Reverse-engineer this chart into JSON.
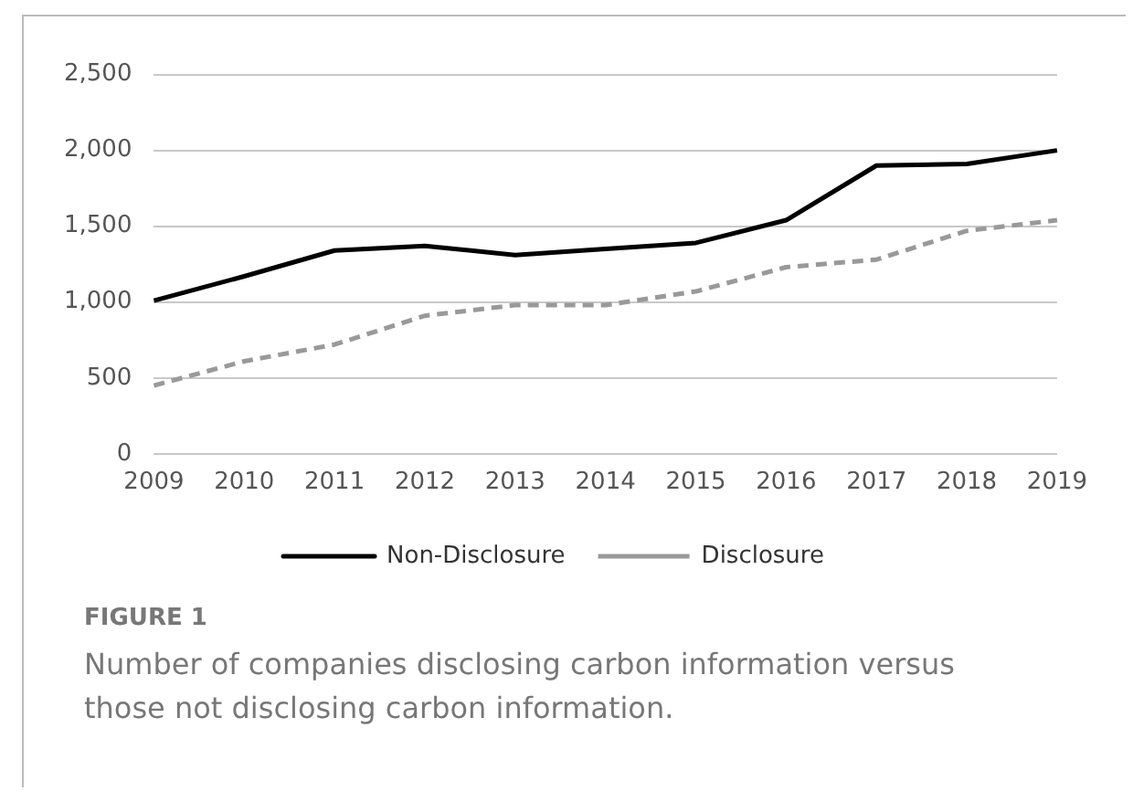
{
  "chart_data": {
    "type": "line",
    "categories": [
      "2009",
      "2010",
      "2011",
      "2012",
      "2013",
      "2014",
      "2015",
      "2016",
      "2017",
      "2018",
      "2019"
    ],
    "series": [
      {
        "name": "Non-Disclosure",
        "color": "#000000",
        "line_style": "solid",
        "values": [
          1010,
          1170,
          1340,
          1370,
          1310,
          1350,
          1390,
          1540,
          1900,
          1910,
          2000
        ]
      },
      {
        "name": "Disclosure",
        "color": "#999999",
        "line_style": "dashed",
        "values": [
          450,
          610,
          720,
          910,
          980,
          980,
          1070,
          1230,
          1280,
          1470,
          1540
        ]
      }
    ],
    "ylim": [
      0,
      2500
    ],
    "yticks": [
      0,
      500,
      {
        "value": 1000,
        "label": "1,000"
      },
      {
        "value": 1500,
        "label": "1,500"
      },
      {
        "value": 2000,
        "label": "2,000"
      },
      {
        "value": 2500,
        "label": "2,500"
      }
    ],
    "grid": "y",
    "legend": "bottom",
    "marker": "none",
    "annotations": [
      "FIGURE 1",
      "Number of companies disclosing carbon information versus those not disclosing carbon information."
    ]
  }
}
